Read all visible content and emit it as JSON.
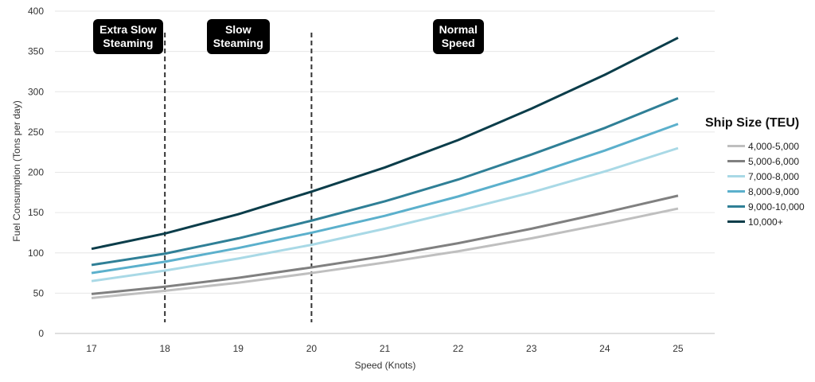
{
  "chart_data": {
    "type": "line",
    "title": "",
    "xlabel": "Speed (Knots)",
    "ylabel": "Fuel Consumption (Tons per day)",
    "x": [
      17,
      18,
      19,
      20,
      21,
      22,
      23,
      24,
      25
    ],
    "ylim": [
      0,
      400
    ],
    "yticks": [
      0,
      50,
      100,
      150,
      200,
      250,
      300,
      350,
      400
    ],
    "grid": true,
    "legend_title": "Ship Size (TEU)",
    "legend_position": "right",
    "series": [
      {
        "name": "4,000-5,000",
        "color": "#bfbfbf",
        "values": [
          44,
          53,
          63,
          75,
          88,
          102,
          118,
          136,
          155
        ]
      },
      {
        "name": "5,000-6,000",
        "color": "#808080",
        "values": [
          49,
          58,
          69,
          82,
          96,
          112,
          130,
          150,
          171
        ]
      },
      {
        "name": "7,000-8,000",
        "color": "#a9d9e6",
        "values": [
          65,
          78,
          93,
          110,
          130,
          152,
          175,
          201,
          230
        ]
      },
      {
        "name": "8,000-9,000",
        "color": "#5bb0cc",
        "values": [
          75,
          89,
          106,
          125,
          146,
          170,
          197,
          227,
          260
        ]
      },
      {
        "name": "9,000-10,000",
        "color": "#2f7f96",
        "values": [
          85,
          99,
          118,
          140,
          164,
          191,
          222,
          255,
          292
        ]
      },
      {
        "name": "10,000+",
        "color": "#0b3d4a",
        "values": [
          105,
          124,
          148,
          176,
          206,
          240,
          279,
          321,
          367
        ]
      }
    ],
    "annotations": [
      {
        "label": "Extra Slow\nSteaming",
        "x_center": 17.5
      },
      {
        "label": "Slow\nSteaming",
        "x_center": 19
      },
      {
        "label": "Normal\nSpeed",
        "x_center": 22
      }
    ],
    "dividers": [
      18,
      20
    ]
  }
}
